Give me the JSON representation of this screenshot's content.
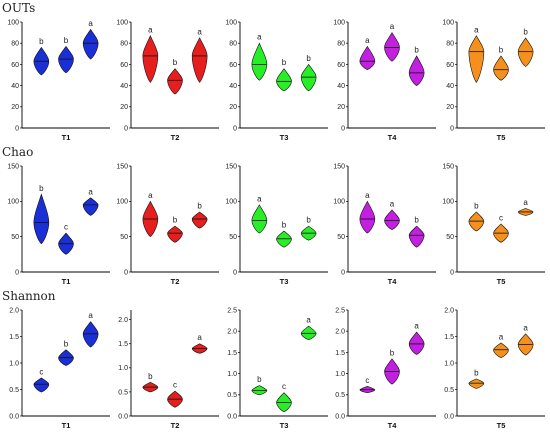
{
  "colors": {
    "T1": "#1a2fd6",
    "T2": "#e61e1e",
    "T3": "#28ee28",
    "T4": "#c21fe0",
    "T5": "#f5901d"
  },
  "rows": [
    {
      "title": "OUTs",
      "chart_data": {
        "type": "violin",
        "ylim": [
          0,
          100
        ],
        "yticks": [
          0,
          20,
          40,
          60,
          80,
          100
        ],
        "panels": [
          {
            "xlabel": "T1",
            "groups": [
              {
                "median": 63,
                "min": 50,
                "max": 76,
                "letter": "b"
              },
              {
                "median": 65,
                "min": 52,
                "max": 77,
                "letter": "b"
              },
              {
                "median": 80,
                "min": 65,
                "max": 93,
                "letter": "a"
              }
            ]
          },
          {
            "xlabel": "T2",
            "groups": [
              {
                "median": 68,
                "min": 43,
                "max": 87,
                "letter": "a"
              },
              {
                "median": 45,
                "min": 32,
                "max": 56,
                "letter": "b"
              },
              {
                "median": 68,
                "min": 43,
                "max": 85,
                "letter": "a"
              }
            ]
          },
          {
            "xlabel": "T3",
            "groups": [
              {
                "median": 60,
                "min": 45,
                "max": 80,
                "letter": "a"
              },
              {
                "median": 44,
                "min": 35,
                "max": 56,
                "letter": "b"
              },
              {
                "median": 48,
                "min": 35,
                "max": 60,
                "letter": "b"
              }
            ]
          },
          {
            "xlabel": "T4",
            "groups": [
              {
                "median": 63,
                "min": 55,
                "max": 77,
                "letter": "a"
              },
              {
                "median": 76,
                "min": 63,
                "max": 90,
                "letter": "a"
              },
              {
                "median": 52,
                "min": 40,
                "max": 68,
                "letter": "b"
              }
            ]
          },
          {
            "xlabel": "T5",
            "groups": [
              {
                "median": 72,
                "min": 43,
                "max": 87,
                "letter": "a"
              },
              {
                "median": 55,
                "min": 45,
                "max": 68,
                "letter": "b"
              },
              {
                "median": 72,
                "min": 58,
                "max": 85,
                "letter": "b"
              }
            ]
          }
        ]
      }
    },
    {
      "title": "Chao",
      "chart_data": {
        "type": "violin",
        "ylim": [
          0,
          150
        ],
        "yticks": [
          0,
          50,
          100,
          150
        ],
        "panels": [
          {
            "xlabel": "T1",
            "groups": [
              {
                "median": 70,
                "min": 40,
                "max": 110,
                "letter": "b"
              },
              {
                "median": 40,
                "min": 25,
                "max": 55,
                "letter": "c"
              },
              {
                "median": 95,
                "min": 80,
                "max": 105,
                "letter": "a"
              }
            ]
          },
          {
            "xlabel": "T2",
            "groups": [
              {
                "median": 75,
                "min": 50,
                "max": 100,
                "letter": "a"
              },
              {
                "median": 55,
                "min": 42,
                "max": 65,
                "letter": "b"
              },
              {
                "median": 75,
                "min": 62,
                "max": 85,
                "letter": "b"
              }
            ]
          },
          {
            "xlabel": "T3",
            "groups": [
              {
                "median": 73,
                "min": 55,
                "max": 95,
                "letter": "a"
              },
              {
                "median": 47,
                "min": 35,
                "max": 58,
                "letter": "b"
              },
              {
                "median": 55,
                "min": 45,
                "max": 65,
                "letter": "b"
              }
            ]
          },
          {
            "xlabel": "T4",
            "groups": [
              {
                "median": 75,
                "min": 55,
                "max": 100,
                "letter": "a"
              },
              {
                "median": 73,
                "min": 60,
                "max": 88,
                "letter": "a"
              },
              {
                "median": 52,
                "min": 35,
                "max": 65,
                "letter": "b"
              }
            ]
          },
          {
            "xlabel": "T5",
            "groups": [
              {
                "median": 72,
                "min": 58,
                "max": 85,
                "letter": "b"
              },
              {
                "median": 55,
                "min": 42,
                "max": 68,
                "letter": "c"
              },
              {
                "median": 85,
                "min": 80,
                "max": 90,
                "letter": "a"
              }
            ]
          }
        ]
      }
    },
    {
      "title": "Shannon",
      "chart_data": {
        "type": "violin",
        "panels": [
          {
            "xlabel": "T1",
            "ylim": [
              0,
              2.0
            ],
            "yticks": [
              0.0,
              0.5,
              1.0,
              1.5,
              2.0
            ],
            "groups": [
              {
                "median": 0.6,
                "min": 0.45,
                "max": 0.72,
                "letter": "c"
              },
              {
                "median": 1.1,
                "min": 0.95,
                "max": 1.25,
                "letter": "b"
              },
              {
                "median": 1.55,
                "min": 1.3,
                "max": 1.78,
                "letter": "a"
              }
            ]
          },
          {
            "xlabel": "T2",
            "ylim": [
              0,
              2.2
            ],
            "yticks": [
              0.0,
              0.5,
              1.0,
              1.5,
              2.0
            ],
            "groups": [
              {
                "median": 0.6,
                "min": 0.5,
                "max": 0.7,
                "letter": "b"
              },
              {
                "median": 0.35,
                "min": 0.18,
                "max": 0.52,
                "letter": "c"
              },
              {
                "median": 1.4,
                "min": 1.3,
                "max": 1.5,
                "letter": "a"
              }
            ]
          },
          {
            "xlabel": "T3",
            "ylim": [
              0,
              2.5
            ],
            "yticks": [
              0.0,
              0.5,
              1.0,
              1.5,
              2.0,
              2.5
            ],
            "groups": [
              {
                "median": 0.6,
                "min": 0.5,
                "max": 0.72,
                "letter": "b"
              },
              {
                "median": 0.32,
                "min": 0.1,
                "max": 0.55,
                "letter": "c"
              },
              {
                "median": 1.95,
                "min": 1.8,
                "max": 2.12,
                "letter": "a"
              }
            ]
          },
          {
            "xlabel": "T4",
            "ylim": [
              0,
              2.5
            ],
            "yticks": [
              0.0,
              0.5,
              1.0,
              1.5,
              2.0,
              2.5
            ],
            "groups": [
              {
                "median": 0.62,
                "min": 0.55,
                "max": 0.7,
                "letter": "c"
              },
              {
                "median": 1.05,
                "min": 0.75,
                "max": 1.35,
                "letter": "b"
              },
              {
                "median": 1.7,
                "min": 1.45,
                "max": 1.98,
                "letter": "a"
              }
            ]
          },
          {
            "xlabel": "T5",
            "ylim": [
              0,
              2.0
            ],
            "yticks": [
              0.0,
              0.5,
              1.0,
              1.5,
              2.0
            ],
            "groups": [
              {
                "median": 0.62,
                "min": 0.52,
                "max": 0.7,
                "letter": "b"
              },
              {
                "median": 1.25,
                "min": 1.1,
                "max": 1.38,
                "letter": "a"
              },
              {
                "median": 1.35,
                "min": 1.15,
                "max": 1.55,
                "letter": "a"
              }
            ]
          }
        ]
      }
    }
  ]
}
